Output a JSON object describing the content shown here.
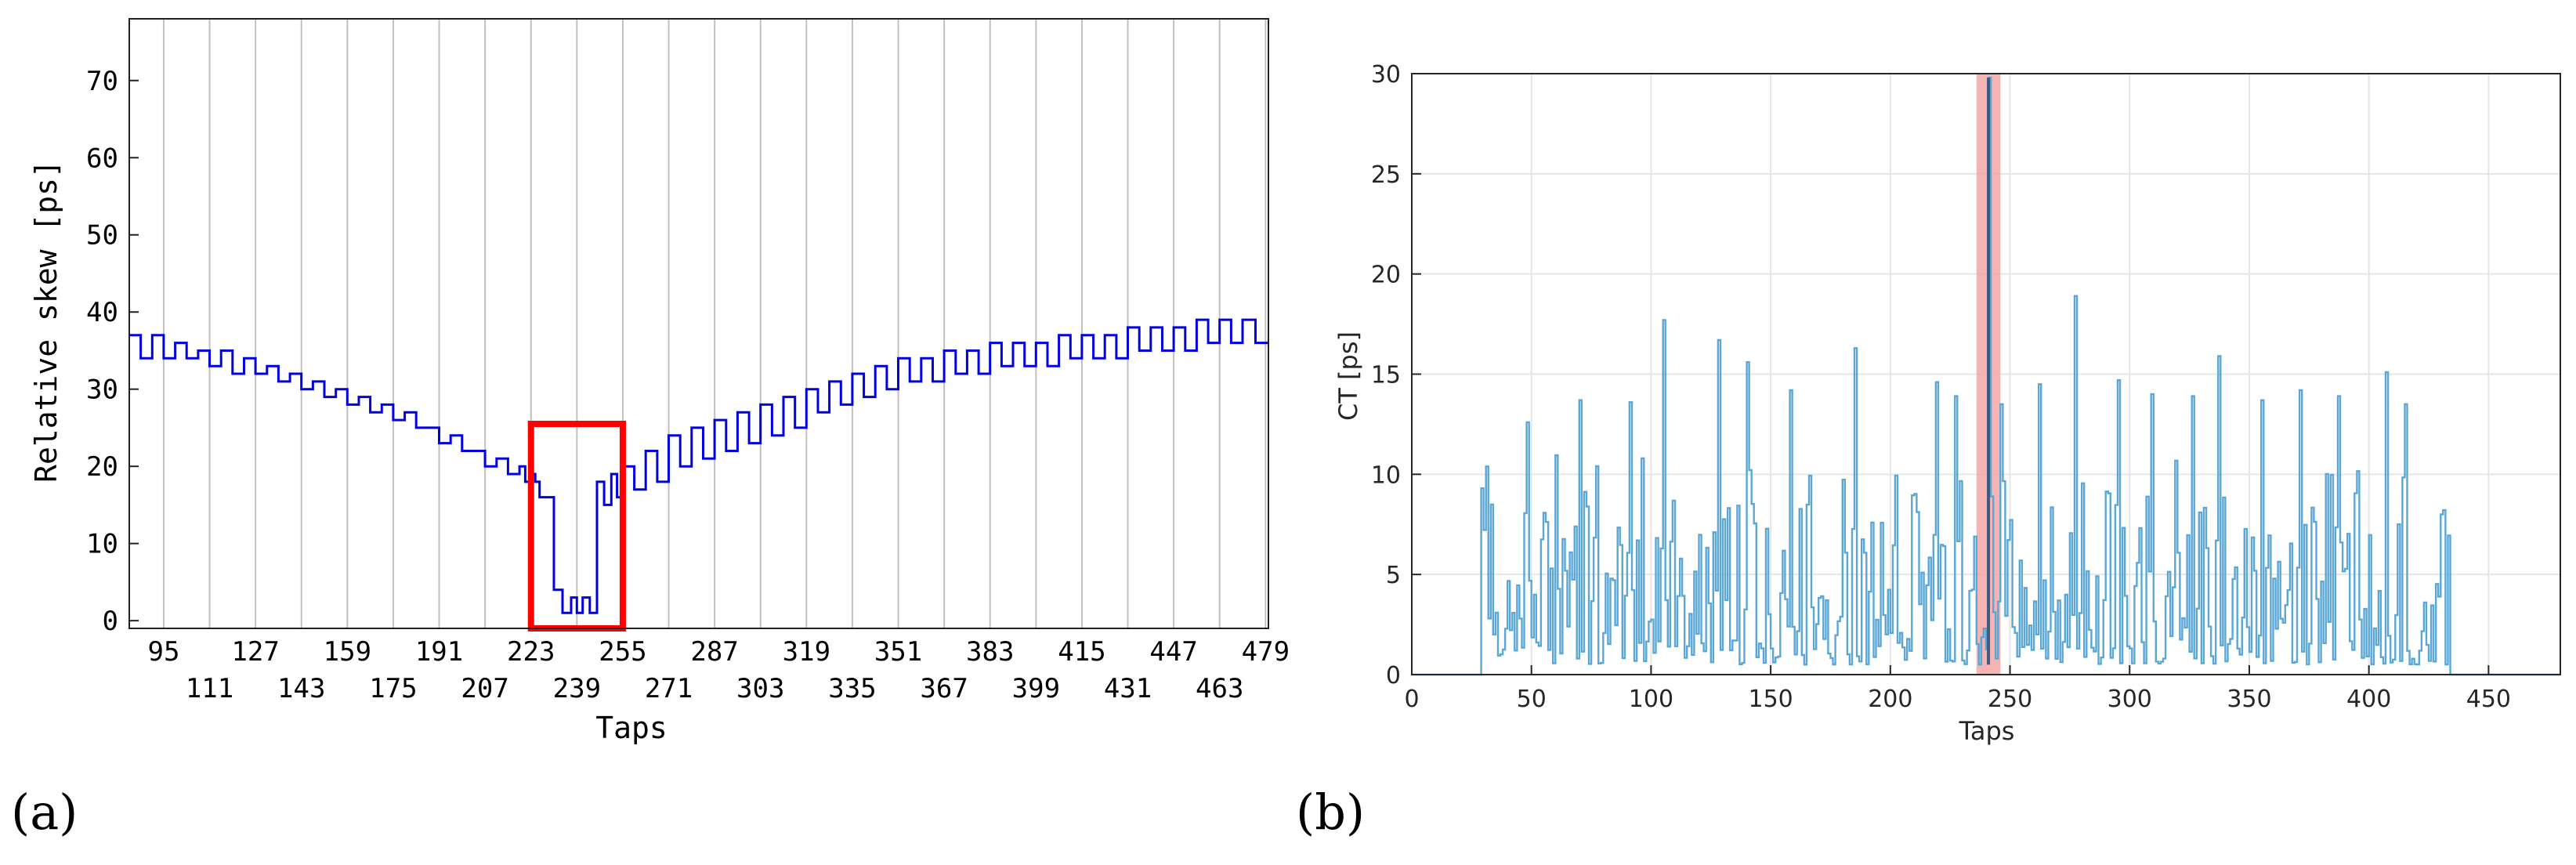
{
  "figure": {
    "panel_labels": [
      "(a)",
      "(b)"
    ]
  },
  "chart_data": [
    {
      "id": "a",
      "type": "line",
      "xlabel": "Taps",
      "ylabel": "Relative skew [ps]",
      "xlim": [
        83,
        480
      ],
      "ylim": [
        -1,
        78
      ],
      "yticks": [
        0,
        10,
        20,
        30,
        40,
        50,
        60,
        70
      ],
      "xticks_upper": [
        95,
        127,
        159,
        191,
        223,
        255,
        287,
        319,
        351,
        383,
        415,
        447,
        479
      ],
      "xticks_lower": [
        111,
        143,
        175,
        207,
        239,
        271,
        303,
        335,
        367,
        399,
        431,
        463
      ],
      "xgrid": [
        95,
        111,
        127,
        143,
        159,
        175,
        191,
        207,
        223,
        239,
        255,
        271,
        287,
        303,
        319,
        335,
        351,
        367,
        383,
        399,
        415,
        431,
        447,
        463,
        479
      ],
      "series_color": "#0000e0",
      "highlight_color": "#ff0000",
      "series": [
        {
          "x": [
            83,
            91,
            99,
            107,
            115,
            123,
            131,
            139,
            147,
            155,
            163,
            171,
            179,
            187,
            195,
            203,
            211,
            219,
            223,
            226,
            231,
            237,
            241,
            246,
            251,
            255,
            263,
            271,
            279,
            287,
            295,
            303,
            311,
            319,
            327,
            335,
            343,
            351,
            359,
            367,
            375,
            383,
            391,
            399,
            407,
            415,
            423,
            431,
            439,
            447,
            455,
            463,
            471,
            480
          ],
          "y_high": [
            37,
            37,
            36,
            35,
            35,
            34,
            33,
            32,
            31,
            30,
            29,
            28,
            27,
            25,
            24,
            22,
            21,
            20,
            19,
            16,
            4,
            3,
            3,
            18,
            19,
            20,
            22,
            24,
            25,
            26,
            27,
            28,
            29,
            30,
            31,
            32,
            33,
            34,
            34,
            35,
            35,
            36,
            36,
            36,
            37,
            37,
            37,
            38,
            38,
            38,
            39,
            39,
            39,
            39
          ],
          "y_low": [
            34,
            34,
            34,
            33,
            32,
            32,
            31,
            30,
            29,
            28,
            27,
            26,
            25,
            23,
            22,
            20,
            19,
            18,
            18,
            16,
            1,
            1,
            1,
            15,
            16,
            17,
            18,
            20,
            21,
            22,
            23,
            24,
            25,
            27,
            28,
            29,
            30,
            31,
            31,
            32,
            32,
            33,
            33,
            33,
            34,
            34,
            34,
            35,
            35,
            35,
            36,
            36,
            36,
            36
          ]
        }
      ],
      "highlight_box": {
        "x": [
          223,
          255
        ],
        "y": [
          -1,
          25.5
        ]
      }
    },
    {
      "id": "b",
      "type": "line",
      "xlabel": "Taps",
      "ylabel": "CT [ps]",
      "xlim": [
        0,
        480
      ],
      "ylim": [
        0,
        30
      ],
      "xticks": [
        0,
        50,
        100,
        150,
        200,
        250,
        300,
        350,
        400,
        450
      ],
      "yticks": [
        0,
        5,
        10,
        15,
        20,
        25,
        30
      ],
      "series_color": "#5aa7d6",
      "band_color": "#f4a6a6",
      "band": [
        236,
        246
      ],
      "zero_until": 29,
      "active_until": 433,
      "peaks": [
        {
          "x": 29,
          "y": 9.3
        },
        {
          "x": 48,
          "y": 12.6
        },
        {
          "x": 70,
          "y": 13.7
        },
        {
          "x": 91,
          "y": 13.6
        },
        {
          "x": 105,
          "y": 17.7
        },
        {
          "x": 128,
          "y": 16.7
        },
        {
          "x": 140,
          "y": 15.6
        },
        {
          "x": 158,
          "y": 14.2
        },
        {
          "x": 185,
          "y": 16.3
        },
        {
          "x": 219,
          "y": 14.6
        },
        {
          "x": 227,
          "y": 13.9
        },
        {
          "x": 241,
          "y": 29.8
        },
        {
          "x": 246,
          "y": 13.5
        },
        {
          "x": 262,
          "y": 14.5
        },
        {
          "x": 277,
          "y": 18.9
        },
        {
          "x": 295,
          "y": 14.7
        },
        {
          "x": 309,
          "y": 14.0
        },
        {
          "x": 326,
          "y": 13.9
        },
        {
          "x": 337,
          "y": 15.9
        },
        {
          "x": 355,
          "y": 13.7
        },
        {
          "x": 371,
          "y": 14.2
        },
        {
          "x": 387,
          "y": 13.9
        },
        {
          "x": 407,
          "y": 15.1
        },
        {
          "x": 415,
          "y": 13.5
        },
        {
          "x": 430,
          "y": 8.0
        }
      ]
    }
  ]
}
